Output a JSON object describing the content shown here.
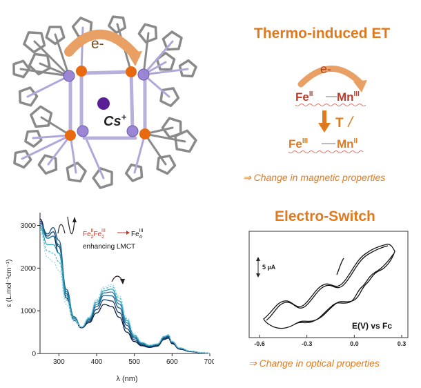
{
  "colors": {
    "accent": "#e07a1f",
    "arrow_orange": "#e8a064",
    "fe_red": "#c0392b",
    "stick_gray": "#8a8a8a",
    "mn_purple": "#9b86d6",
    "fe_orange": "#e86a10",
    "cs_purple": "#5a1f96",
    "spectrum_teal": "#2a9fb8"
  },
  "structure": {
    "electron_label": "e-",
    "cs_label": "Cs",
    "cs_charge": "+"
  },
  "thermo": {
    "title": "Thermo-induced ET",
    "electron_label": "e-",
    "top_pair": {
      "fe": "Fe",
      "fe_ox": "II",
      "mn": "Mn",
      "mn_ox": "III"
    },
    "arrow_label": "T",
    "bottom_pair": {
      "fe": "Fe",
      "fe_ox": "III",
      "mn": "Mn",
      "mn_ox": "II"
    },
    "consequence": "⇒ Change in magnetic properties"
  },
  "spectrum": {
    "annotation": {
      "left": "Fe",
      "left_a_sub": "2",
      "left_a_sup": "II",
      "mid": "Fe",
      "mid_sub": "2",
      "mid_sup": "III",
      "right": "Fe",
      "right_sub": "4",
      "right_sup": "III",
      "note": "enhancing LMCT"
    }
  },
  "electro": {
    "title": "Electro-Switch",
    "scale_label": "5 µA",
    "axis_label": "E(V) vs Fc",
    "consequence": "⇒ Change in optical properties"
  },
  "chart_data": [
    {
      "type": "line",
      "xlabel": "λ (nm)",
      "ylabel": "ε (L.mol⁻¹cm⁻¹)",
      "xlim": [
        250,
        700
      ],
      "ylim": [
        0,
        3300
      ],
      "x_ticks": [
        300,
        400,
        500,
        600,
        700
      ],
      "y_ticks": [
        0,
        1000,
        2000,
        3000
      ],
      "grid": false,
      "x": [
        250,
        270,
        285,
        300,
        320,
        340,
        360,
        380,
        400,
        420,
        440,
        460,
        480,
        500,
        520,
        540,
        560,
        580,
        590,
        600,
        620,
        650,
        680,
        700
      ],
      "series": [
        {
          "values": [
            3150,
            2700,
            2750,
            2350,
            1300,
            780,
            600,
            720,
            950,
            1150,
            1100,
            850,
            500,
            280,
            180,
            140,
            170,
            330,
            360,
            230,
            100,
            40,
            15,
            5
          ]
        },
        {
          "values": [
            3100,
            2750,
            2850,
            2500,
            1400,
            820,
            610,
            750,
            1030,
            1260,
            1230,
            960,
            580,
            320,
            200,
            155,
            185,
            350,
            380,
            245,
            110,
            45,
            15,
            5
          ]
        },
        {
          "values": [
            3050,
            2800,
            2950,
            2650,
            1500,
            860,
            620,
            780,
            1100,
            1360,
            1350,
            1070,
            660,
            360,
            220,
            170,
            200,
            370,
            400,
            260,
            120,
            50,
            18,
            6
          ]
        },
        {
          "values": [
            3000,
            2700,
            2750,
            2550,
            1450,
            850,
            620,
            800,
            1150,
            1420,
            1440,
            1160,
            720,
            390,
            235,
            180,
            210,
            385,
            420,
            270,
            125,
            52,
            18,
            6
          ]
        },
        {
          "values": [
            2950,
            2550,
            2550,
            2350,
            1350,
            820,
            620,
            820,
            1200,
            1470,
            1510,
            1230,
            770,
            420,
            250,
            190,
            220,
            400,
            435,
            280,
            130,
            55,
            20,
            6
          ]
        },
        {
          "values": [
            2900,
            2400,
            2350,
            2150,
            1250,
            790,
            620,
            840,
            1240,
            1520,
            1570,
            1300,
            810,
            440,
            260,
            195,
            225,
            405,
            440,
            285,
            132,
            56,
            20,
            6
          ]
        },
        {
          "values": [
            2850,
            2250,
            2150,
            1950,
            1150,
            760,
            620,
            860,
            1270,
            1560,
            1620,
            1350,
            840,
            455,
            265,
            200,
            228,
            408,
            442,
            287,
            133,
            57,
            20,
            6
          ]
        }
      ]
    },
    {
      "type": "line",
      "xlabel": "E(V) vs Fc",
      "xlim": [
        -0.6,
        0.3
      ],
      "x_ticks": [
        -0.6,
        -0.3,
        0.0,
        0.3
      ],
      "grid": false
    }
  ]
}
